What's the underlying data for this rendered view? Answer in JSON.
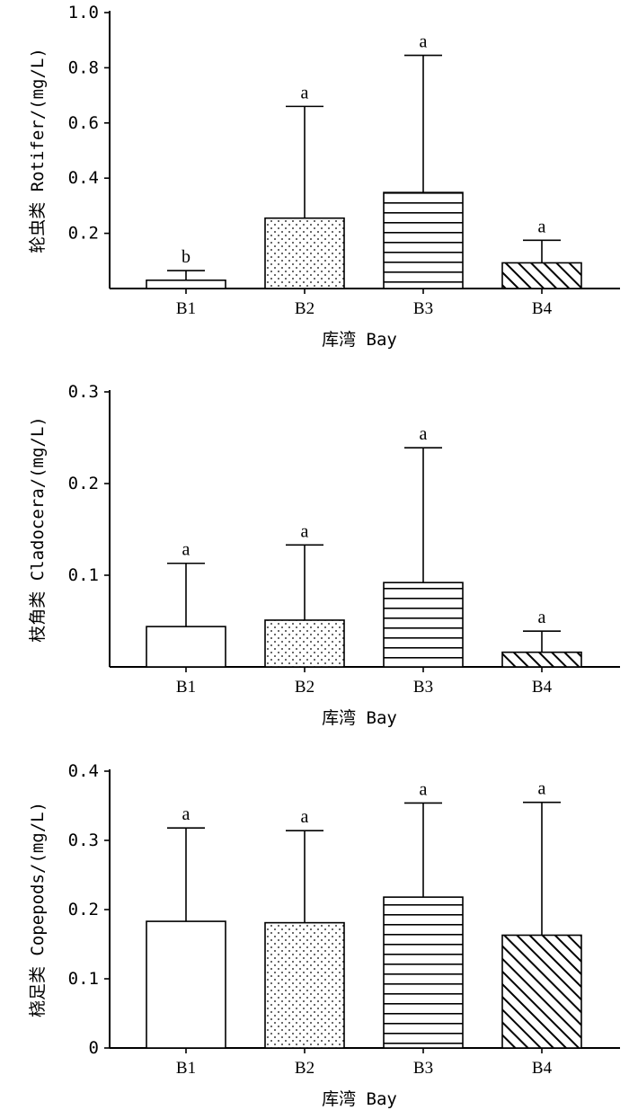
{
  "chart_data": [
    {
      "type": "bar",
      "categories": [
        "B1",
        "B2",
        "B3",
        "B4"
      ],
      "values": [
        0.03,
        0.255,
        0.348,
        0.093
      ],
      "errors": [
        0.035,
        0.405,
        0.497,
        0.082
      ],
      "significance": [
        "b",
        "a",
        "a",
        "a"
      ],
      "patterns": [
        "none",
        "dots",
        "hlines",
        "diag"
      ],
      "xlabel": "库湾 Bay",
      "ylabel": "轮虫类 Rotifer/(mg/L)",
      "ylim": [
        0,
        1.0
      ],
      "yticks": [
        0.2,
        0.4,
        0.6,
        0.8,
        1.0
      ],
      "ytick_labels": [
        "0.2",
        "0.4",
        "0.6",
        "0.8",
        "1.0"
      ]
    },
    {
      "type": "bar",
      "categories": [
        "B1",
        "B2",
        "B3",
        "B4"
      ],
      "values": [
        0.044,
        0.051,
        0.092,
        0.016
      ],
      "errors": [
        0.069,
        0.082,
        0.147,
        0.023
      ],
      "significance": [
        "a",
        "a",
        "a",
        "a"
      ],
      "patterns": [
        "none",
        "dots",
        "hlines",
        "diag"
      ],
      "xlabel": "库湾 Bay",
      "ylabel": "枝角类 Cladocera/(mg/L)",
      "ylim": [
        0,
        0.3
      ],
      "yticks": [
        0.1,
        0.2,
        0.3
      ],
      "ytick_labels": [
        "0.1",
        "0.2",
        "0.3"
      ]
    },
    {
      "type": "bar",
      "categories": [
        "B1",
        "B2",
        "B3",
        "B4"
      ],
      "values": [
        0.183,
        0.181,
        0.218,
        0.163
      ],
      "errors": [
        0.135,
        0.133,
        0.136,
        0.192
      ],
      "significance": [
        "a",
        "a",
        "a",
        "a"
      ],
      "patterns": [
        "none",
        "dots",
        "hlines",
        "diag"
      ],
      "xlabel": "库湾 Bay",
      "ylabel": "桡足类 Copepods/(mg/L)",
      "ylim": [
        0,
        0.4
      ],
      "yticks": [
        0,
        0.1,
        0.2,
        0.3,
        0.4
      ],
      "ytick_labels": [
        "0",
        "0.1",
        "0.2",
        "0.3",
        "0.4"
      ]
    }
  ]
}
